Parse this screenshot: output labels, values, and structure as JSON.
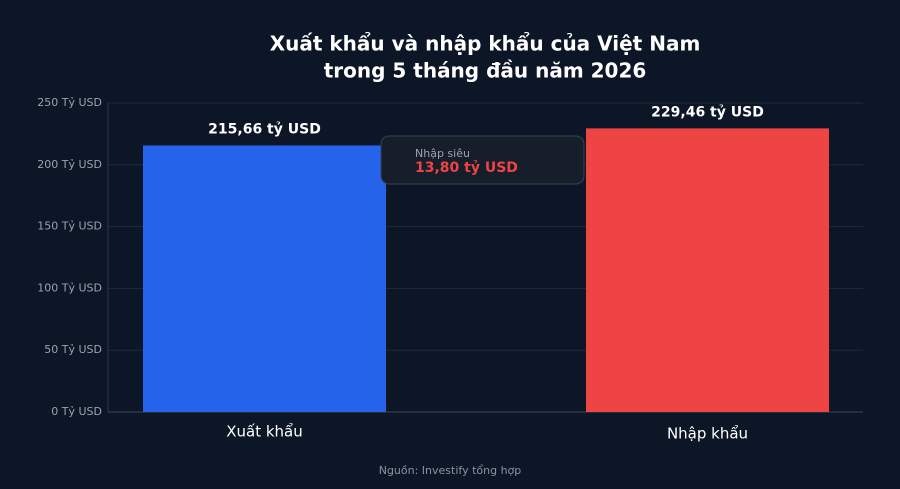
{
  "chart_data": {
    "type": "bar",
    "title": [
      "Xuất khẩu và nhập khẩu của Việt Nam",
      "trong 5 tháng đầu năm 2026"
    ],
    "categories": [
      "Xuất khẩu",
      "Nhập khẩu"
    ],
    "values": [
      215.66,
      229.46
    ],
    "value_labels": [
      "215,66 tỷ USD",
      "229,46 tỷ USD"
    ],
    "colors": [
      "#2563eb",
      "#ef4444"
    ],
    "ylim": [
      0,
      250
    ],
    "yticks": [
      {
        "value": 0,
        "label": "0 Tỷ USD"
      },
      {
        "value": 50,
        "label": "50 Tỷ USD"
      },
      {
        "value": 100,
        "label": "100 Tỷ USD"
      },
      {
        "value": 150,
        "label": "150 Tỷ USD"
      },
      {
        "value": 200,
        "label": "200 Tỷ USD"
      },
      {
        "value": 250,
        "label": "250 Tỷ USD"
      }
    ],
    "grid": true,
    "annotation": {
      "title": "Nhập siêu",
      "text": "13,80 tỷ USD"
    },
    "source": "Nguồn: Investify tổng hợp"
  }
}
